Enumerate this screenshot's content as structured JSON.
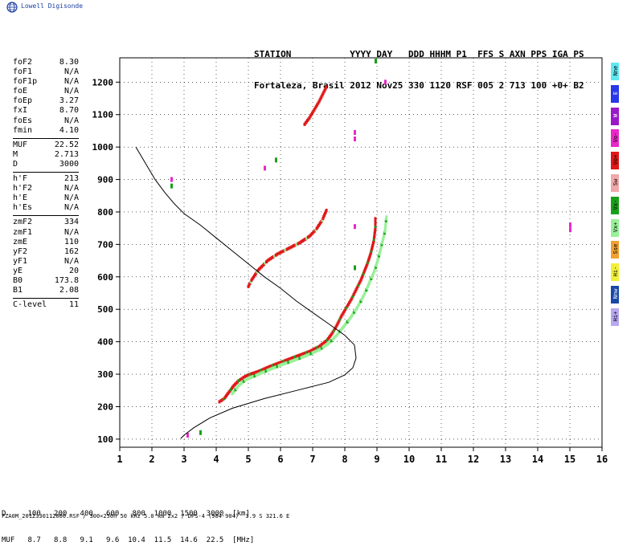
{
  "brand": {
    "logo_text": "Lowell Digisonde"
  },
  "header": {
    "line1": "STATION           YYYY DAY   DDD HHHM P1  FFS S AXN PPS IGA PS",
    "line2": "Fortaleza, Brasil 2012 Nov25 330 1120 RSF 005 2 713 100 +0+ B2"
  },
  "params": [
    {
      "name": "foF2",
      "value": "8.30"
    },
    {
      "name": "foF1",
      "value": "N/A"
    },
    {
      "name": "foF1p",
      "value": "N/A"
    },
    {
      "name": "foE",
      "value": "N/A"
    },
    {
      "name": "foEp",
      "value": "3.27"
    },
    {
      "name": "fxI",
      "value": "8.70"
    },
    {
      "name": "foEs",
      "value": "N/A"
    },
    {
      "name": "fmin",
      "value": "4.10"
    },
    {
      "sep": true
    },
    {
      "name": "MUF",
      "value": "22.52"
    },
    {
      "name": "M",
      "value": "2.713"
    },
    {
      "name": "D",
      "value": "3000"
    },
    {
      "sep": true
    },
    {
      "name": "h'F",
      "value": "213"
    },
    {
      "name": "h'F2",
      "value": "N/A"
    },
    {
      "name": "h'E",
      "value": "N/A"
    },
    {
      "name": "h'Es",
      "value": "N/A"
    },
    {
      "sep": true
    },
    {
      "name": "zmF2",
      "value": "334"
    },
    {
      "name": "zmF1",
      "value": "N/A"
    },
    {
      "name": "zmE",
      "value": "110"
    },
    {
      "name": "yF2",
      "value": "162"
    },
    {
      "name": "yF1",
      "value": "N/A"
    },
    {
      "name": "yE",
      "value": "20"
    },
    {
      "name": "B0",
      "value": "173.8"
    },
    {
      "name": "B1",
      "value": "2.08"
    },
    {
      "sep": true
    },
    {
      "name": "C-level",
      "value": "11"
    }
  ],
  "legend": [
    {
      "label": "Nne",
      "color": "#5fe8f0"
    },
    {
      "label": "E",
      "color": "#2838e8"
    },
    {
      "label": "W",
      "color": "#9a18c8"
    },
    {
      "label": "Vo-",
      "color": "#e828c8"
    },
    {
      "label": "Vo+",
      "color": "#e01818"
    },
    {
      "label": "Sw",
      "color": "#f0a8a8"
    },
    {
      "label": "Vx-",
      "color": "#18a018"
    },
    {
      "label": "Vx+",
      "color": "#98f098"
    },
    {
      "label": "Sse",
      "color": "#f0a030"
    },
    {
      "label": "Hi-",
      "color": "#f0f038"
    },
    {
      "label": "Nnw",
      "color": "#1848a8"
    },
    {
      "label": "Hi+",
      "color": "#b8a8f0"
    }
  ],
  "muf_table": {
    "line1": "D     100   200   400   600   800  1000  1500  3000  [km]",
    "line2": "MUF   8.7   8.8   9.1   9.6  10.4  11.5  14.6  22.5  [MHz]"
  },
  "footer": {
    "text": "FZA0M_2012330112000.RSF / 300×256h 50 kHz 5.0 km 2x2 / DPS-4 (904-904)  3.9 S 321.6 E"
  },
  "chart_data": {
    "type": "scatter",
    "xlim": [
      1,
      16
    ],
    "ylim": [
      75,
      1275
    ],
    "x_ticks": [
      1,
      2,
      3,
      4,
      5,
      6,
      7,
      8,
      9,
      10,
      11,
      12,
      13,
      14,
      15,
      16
    ],
    "y_ticks": [
      100,
      200,
      300,
      400,
      500,
      600,
      700,
      800,
      900,
      1000,
      1100,
      1200
    ],
    "series": [
      {
        "mode": "O",
        "color": "#e01818",
        "accent": "#18a018",
        "points": [
          [
            4.1,
            215
          ],
          [
            4.25,
            225
          ],
          [
            4.4,
            245
          ],
          [
            4.55,
            265
          ],
          [
            4.7,
            280
          ],
          [
            4.85,
            290
          ],
          [
            5.0,
            298
          ],
          [
            5.3,
            308
          ],
          [
            5.7,
            325
          ],
          [
            6.1,
            340
          ],
          [
            6.5,
            355
          ],
          [
            6.9,
            370
          ],
          [
            7.2,
            385
          ],
          [
            7.45,
            405
          ],
          [
            7.6,
            425
          ],
          [
            7.75,
            450
          ],
          [
            7.9,
            480
          ],
          [
            8.05,
            505
          ],
          [
            8.2,
            530
          ],
          [
            8.35,
            560
          ],
          [
            8.5,
            590
          ],
          [
            8.6,
            615
          ],
          [
            8.7,
            640
          ],
          [
            8.8,
            670
          ],
          [
            8.9,
            710
          ],
          [
            8.95,
            750
          ],
          [
            8.95,
            785
          ]
        ]
      },
      {
        "mode": "X",
        "color": "#98f098",
        "accent": "#18a018",
        "points": [
          [
            4.5,
            240
          ],
          [
            4.7,
            265
          ],
          [
            4.9,
            282
          ],
          [
            5.2,
            295
          ],
          [
            5.6,
            312
          ],
          [
            6.0,
            328
          ],
          [
            6.4,
            342
          ],
          [
            6.8,
            357
          ],
          [
            7.2,
            375
          ],
          [
            7.5,
            395
          ],
          [
            7.75,
            420
          ],
          [
            7.95,
            445
          ],
          [
            8.15,
            470
          ],
          [
            8.35,
            500
          ],
          [
            8.5,
            525
          ],
          [
            8.65,
            555
          ],
          [
            8.8,
            590
          ],
          [
            8.95,
            625
          ],
          [
            9.05,
            660
          ],
          [
            9.15,
            700
          ],
          [
            9.25,
            740
          ],
          [
            9.3,
            790
          ]
        ]
      },
      {
        "mode": "O2",
        "color": "#e01818",
        "accent": "#98f098",
        "points": [
          [
            5.0,
            570
          ],
          [
            5.1,
            590
          ],
          [
            5.3,
            620
          ],
          [
            5.6,
            650
          ],
          [
            5.9,
            670
          ],
          [
            6.2,
            685
          ],
          [
            6.6,
            705
          ],
          [
            6.9,
            725
          ],
          [
            7.1,
            745
          ],
          [
            7.3,
            775
          ],
          [
            7.45,
            810
          ]
        ]
      },
      {
        "mode": "O3",
        "color": "#e01818",
        "accent": "#e01818",
        "points": [
          [
            6.75,
            1070
          ],
          [
            6.9,
            1090
          ],
          [
            7.05,
            1115
          ],
          [
            7.2,
            1140
          ],
          [
            7.35,
            1170
          ],
          [
            7.45,
            1190
          ]
        ]
      },
      {
        "mode": "stray",
        "color": "#e828c8",
        "accent": "#18a018",
        "points": [
          [
            5.85,
            960
          ],
          [
            5.5,
            935
          ],
          [
            2.6,
            900
          ],
          [
            2.6,
            880
          ],
          [
            8.3,
            1045
          ],
          [
            8.3,
            1025
          ],
          [
            8.95,
            1265
          ],
          [
            15.0,
            760
          ],
          [
            15.0,
            745
          ],
          [
            3.5,
            120
          ],
          [
            3.1,
            112
          ],
          [
            8.3,
            755
          ],
          [
            8.3,
            628
          ],
          [
            9.25,
            1200
          ]
        ]
      }
    ],
    "profile": {
      "color": "#000000",
      "points": [
        [
          1.5,
          1000
        ],
        [
          1.8,
          950
        ],
        [
          2.1,
          900
        ],
        [
          2.4,
          860
        ],
        [
          2.7,
          825
        ],
        [
          3.0,
          795
        ],
        [
          3.5,
          760
        ],
        [
          4.0,
          720
        ],
        [
          4.5,
          680
        ],
        [
          5.0,
          640
        ],
        [
          5.5,
          600
        ],
        [
          6.0,
          565
        ],
        [
          6.5,
          525
        ],
        [
          7.0,
          490
        ],
        [
          7.5,
          455
        ],
        [
          8.0,
          420
        ],
        [
          8.3,
          390
        ],
        [
          8.35,
          350
        ],
        [
          8.25,
          320
        ],
        [
          8.0,
          298
        ],
        [
          7.5,
          275
        ],
        [
          6.5,
          250
        ],
        [
          5.5,
          225
        ],
        [
          4.5,
          195
        ],
        [
          3.8,
          165
        ],
        [
          3.3,
          135
        ],
        [
          3.0,
          112
        ],
        [
          2.9,
          102
        ]
      ]
    }
  }
}
